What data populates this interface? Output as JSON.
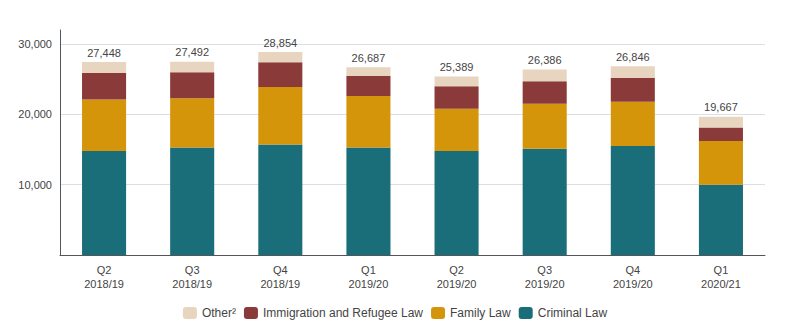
{
  "chart_data": {
    "type": "bar",
    "stacked": true,
    "categories": [
      "Q2\n2018/19",
      "Q3\n2018/19",
      "Q4\n2018/19",
      "Q1\n2019/20",
      "Q2\n2019/20",
      "Q3\n2019/20",
      "Q4\n2019/20",
      "Q1\n2020/21"
    ],
    "series": [
      {
        "name": "Criminal Law",
        "color": "#1a6e7a",
        "values": [
          14800,
          15300,
          15700,
          15300,
          14800,
          15100,
          15500,
          10000
        ]
      },
      {
        "name": "Family Law",
        "color": "#d4950a",
        "values": [
          7300,
          7000,
          8200,
          7300,
          6000,
          6400,
          6300,
          6200
        ]
      },
      {
        "name": "Immigration and Refugee Law",
        "color": "#8b3a3a",
        "values": [
          3800,
          3700,
          3500,
          2900,
          3200,
          3200,
          3400,
          1950
        ]
      },
      {
        "name": "Other²",
        "color": "#e8d5c0",
        "values": [
          1548,
          1492,
          1454,
          1187,
          1389,
          1686,
          1646,
          1517
        ]
      }
    ],
    "totals": [
      27448,
      27492,
      28854,
      26687,
      25389,
      26386,
      26846,
      19667
    ],
    "total_labels": [
      "27,448",
      "27,492",
      "28,854",
      "26,687",
      "25,389",
      "26,386",
      "26,846",
      "19,667"
    ],
    "ylim": [
      0,
      32000
    ],
    "yticks": [
      {
        "value": 10000,
        "label": "10,000"
      },
      {
        "value": 20000,
        "label": "20,000"
      },
      {
        "value": 30000,
        "label": "30,000"
      }
    ],
    "grid": true,
    "legend": "bottom"
  }
}
